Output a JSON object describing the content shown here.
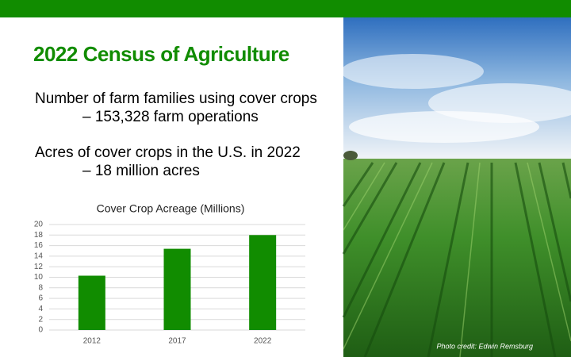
{
  "slide": {
    "title": "2022 Census of Agriculture",
    "lines": [
      "Number of farm families using cover crops",
      "– 153,328 farm operations",
      "Acres of cover crops in the U.S. in 2022",
      "– 18 million acres"
    ],
    "photo_credit": "Photo credit: Edwin Remsburg"
  },
  "chart_data": {
    "type": "bar",
    "title": "Cover Crop Acreage (Millions)",
    "categories": [
      "2012",
      "2017",
      "2022"
    ],
    "values": [
      10.3,
      15.4,
      18.0
    ],
    "color": "#118c00",
    "ylim": [
      0,
      20
    ],
    "yticks": [
      0,
      2,
      4,
      6,
      8,
      10,
      12,
      14,
      16,
      18,
      20
    ],
    "grid": true
  }
}
